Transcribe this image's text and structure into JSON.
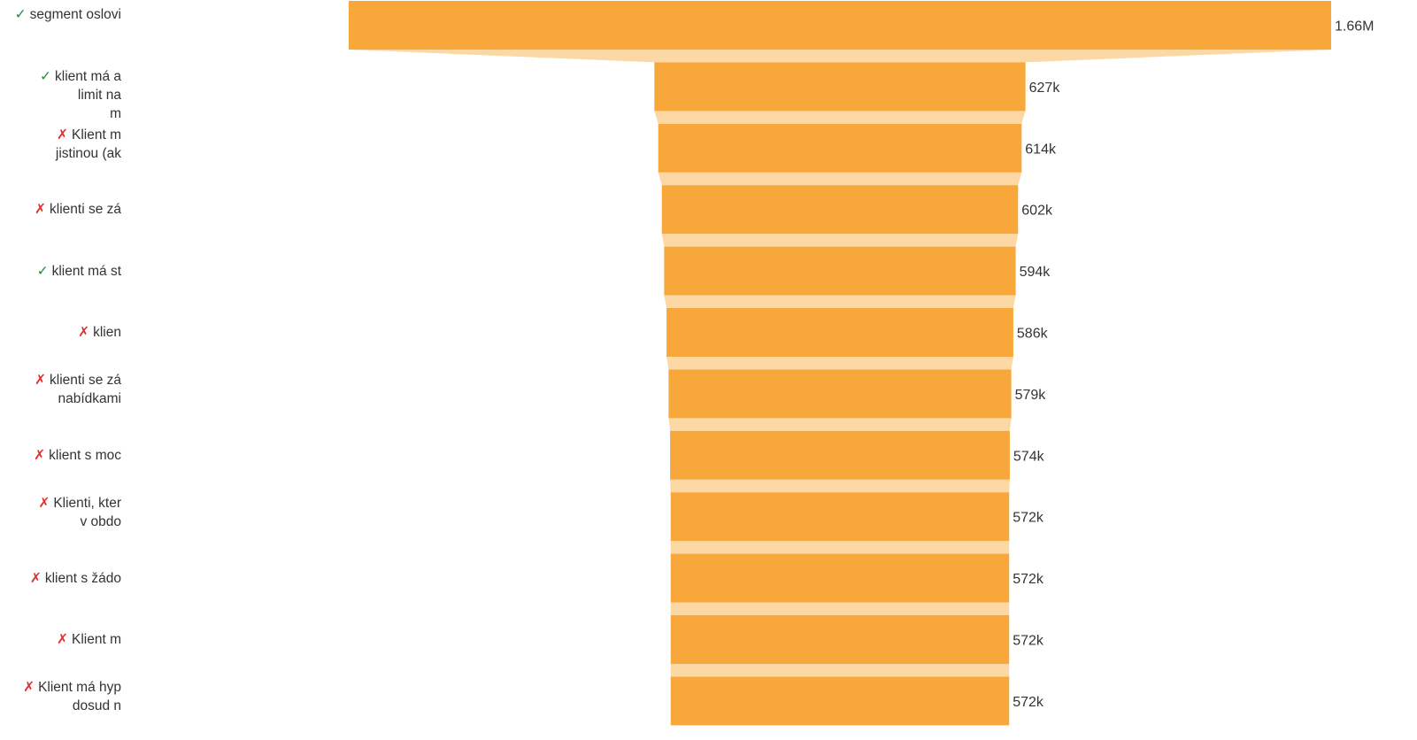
{
  "chart_data": {
    "type": "funnel",
    "colors": {
      "bar": "#f8a73a",
      "connector": "#fcd9a4",
      "pass": "#2e8b3a",
      "fail": "#e03131"
    },
    "stages": [
      {
        "status": "pass",
        "label_lines": [
          "segment oslovi"
        ],
        "value": 1660000,
        "value_label": "1.66M"
      },
      {
        "status": "pass",
        "label_lines": [
          "klient má a",
          "limit na",
          "m"
        ],
        "value": 627000,
        "value_label": "627k"
      },
      {
        "status": "fail",
        "label_lines": [
          "Klient m",
          "jistinou (ak"
        ],
        "value": 614000,
        "value_label": "614k"
      },
      {
        "status": "fail",
        "label_lines": [
          "klienti se zá"
        ],
        "value": 602000,
        "value_label": "602k"
      },
      {
        "status": "pass",
        "label_lines": [
          "klient má st"
        ],
        "value": 594000,
        "value_label": "594k"
      },
      {
        "status": "fail",
        "label_lines": [
          "klien"
        ],
        "value": 586000,
        "value_label": "586k"
      },
      {
        "status": "fail",
        "label_lines": [
          "klienti se zá",
          "nabídkami"
        ],
        "value": 579000,
        "value_label": "579k"
      },
      {
        "status": "fail",
        "label_lines": [
          "klient s moc"
        ],
        "value": 574000,
        "value_label": "574k"
      },
      {
        "status": "fail",
        "label_lines": [
          "Klienti, kter",
          "v obdo"
        ],
        "value": 572000,
        "value_label": "572k"
      },
      {
        "status": "fail",
        "label_lines": [
          "klient s žádo"
        ],
        "value": 572000,
        "value_label": "572k"
      },
      {
        "status": "fail",
        "label_lines": [
          "Klient m"
        ],
        "value": 572000,
        "value_label": "572k"
      },
      {
        "status": "fail",
        "label_lines": [
          "Klient má hyp",
          "dosud n"
        ],
        "value": 572000,
        "value_label": "572k"
      }
    ],
    "status_marks": {
      "pass": "✓",
      "fail": "✗"
    }
  }
}
